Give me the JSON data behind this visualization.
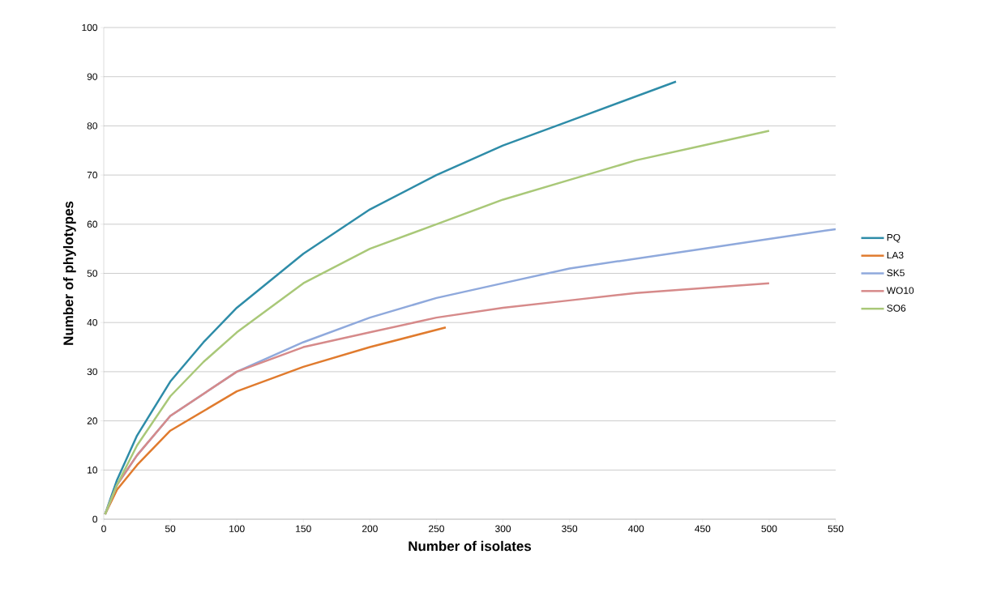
{
  "chart_data": {
    "type": "line",
    "xlabel": "Number of isolates",
    "ylabel": "Number of phylotypes",
    "xlim": [
      0,
      550
    ],
    "ylim": [
      0,
      100
    ],
    "xticks": [
      0,
      50,
      100,
      150,
      200,
      250,
      300,
      350,
      400,
      450,
      500,
      550
    ],
    "yticks": [
      0,
      10,
      20,
      30,
      40,
      50,
      60,
      70,
      80,
      90,
      100
    ],
    "grid": "y",
    "legend": "right",
    "marker": "none",
    "line_style": "solid",
    "series": [
      {
        "name": "PQ",
        "color": "#2e8ca8",
        "x": [
          1,
          10,
          25,
          50,
          75,
          100,
          150,
          200,
          250,
          300,
          350,
          400,
          430
        ],
        "values": [
          1,
          8,
          17,
          28,
          36,
          43,
          54,
          63,
          70,
          76,
          81,
          86,
          89
        ]
      },
      {
        "name": "LA3",
        "color": "#e07b2e",
        "x": [
          1,
          10,
          25,
          50,
          100,
          150,
          200,
          257
        ],
        "values": [
          1,
          6,
          11,
          18,
          26,
          31,
          35,
          39
        ]
      },
      {
        "name": "SK5",
        "color": "#8fa9dc",
        "x": [
          1,
          10,
          25,
          50,
          100,
          150,
          200,
          250,
          300,
          350,
          400,
          450,
          500,
          550
        ],
        "values": [
          1,
          7,
          13,
          21,
          30,
          36,
          41,
          45,
          48,
          51,
          53,
          55,
          57,
          59
        ]
      },
      {
        "name": "WO10",
        "color": "#d68a8a",
        "x": [
          1,
          10,
          25,
          50,
          100,
          150,
          200,
          250,
          300,
          350,
          400,
          450,
          500
        ],
        "values": [
          1,
          7,
          13,
          21,
          30,
          35,
          38,
          41,
          43,
          44.5,
          46,
          47,
          48
        ]
      },
      {
        "name": "SO6",
        "color": "#a9c878",
        "x": [
          1,
          10,
          25,
          50,
          75,
          100,
          150,
          200,
          250,
          300,
          350,
          400,
          450,
          500
        ],
        "values": [
          1,
          7,
          15,
          25,
          32,
          38,
          48,
          55,
          60,
          65,
          69,
          73,
          76,
          79
        ]
      }
    ]
  }
}
